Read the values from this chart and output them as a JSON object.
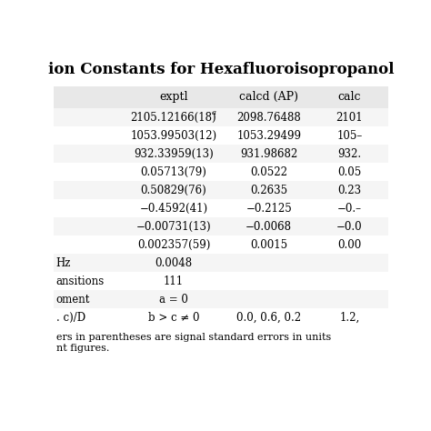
{
  "title": "ion Constants for Hexafluoroisopropanol",
  "title_fontsize": 12,
  "col_headers": [
    "",
    "exptl",
    "calcd (AP)",
    "calc"
  ],
  "rows": [
    [
      "",
      "2105.12166(18)",
      "2098.76488",
      "2101"
    ],
    [
      "",
      "1053.99503(12)",
      "1053.29499",
      "105–"
    ],
    [
      "",
      "932.33959(13)",
      "931.98682",
      "932."
    ],
    [
      "",
      "0.05713(79)",
      "0.0522",
      "0.05"
    ],
    [
      "",
      "0.50829(76)",
      "0.2635",
      "0.23"
    ],
    [
      "",
      "−0.4592(41)",
      "−0.2125",
      "−0.–"
    ],
    [
      "",
      "−0.00731(13)",
      "−0.0068",
      "−0.0"
    ],
    [
      "",
      "0.002357(59)",
      "0.0015",
      "0.00"
    ],
    [
      "Hz",
      "0.0048",
      "",
      ""
    ],
    [
      "ansitions",
      "111",
      "",
      ""
    ],
    [
      "oment",
      "a = 0",
      "",
      ""
    ],
    [
      ". c)/D",
      "b > c ≠ 0",
      "0.0, 0.6, 0.2",
      "1.2,"
    ]
  ],
  "row_has_sup_a": [
    true,
    false,
    false,
    false,
    false,
    false,
    false,
    false,
    false,
    false,
    false,
    false
  ],
  "footnote_line1": "ers in parentheses are signal standard errors in units",
  "footnote_line2": "nt figures.",
  "header_bg": "#e8e8e8",
  "row_bg_odd": "#f5f5f5",
  "row_bg_even": "#ffffff",
  "font_family": "DejaVu Serif"
}
